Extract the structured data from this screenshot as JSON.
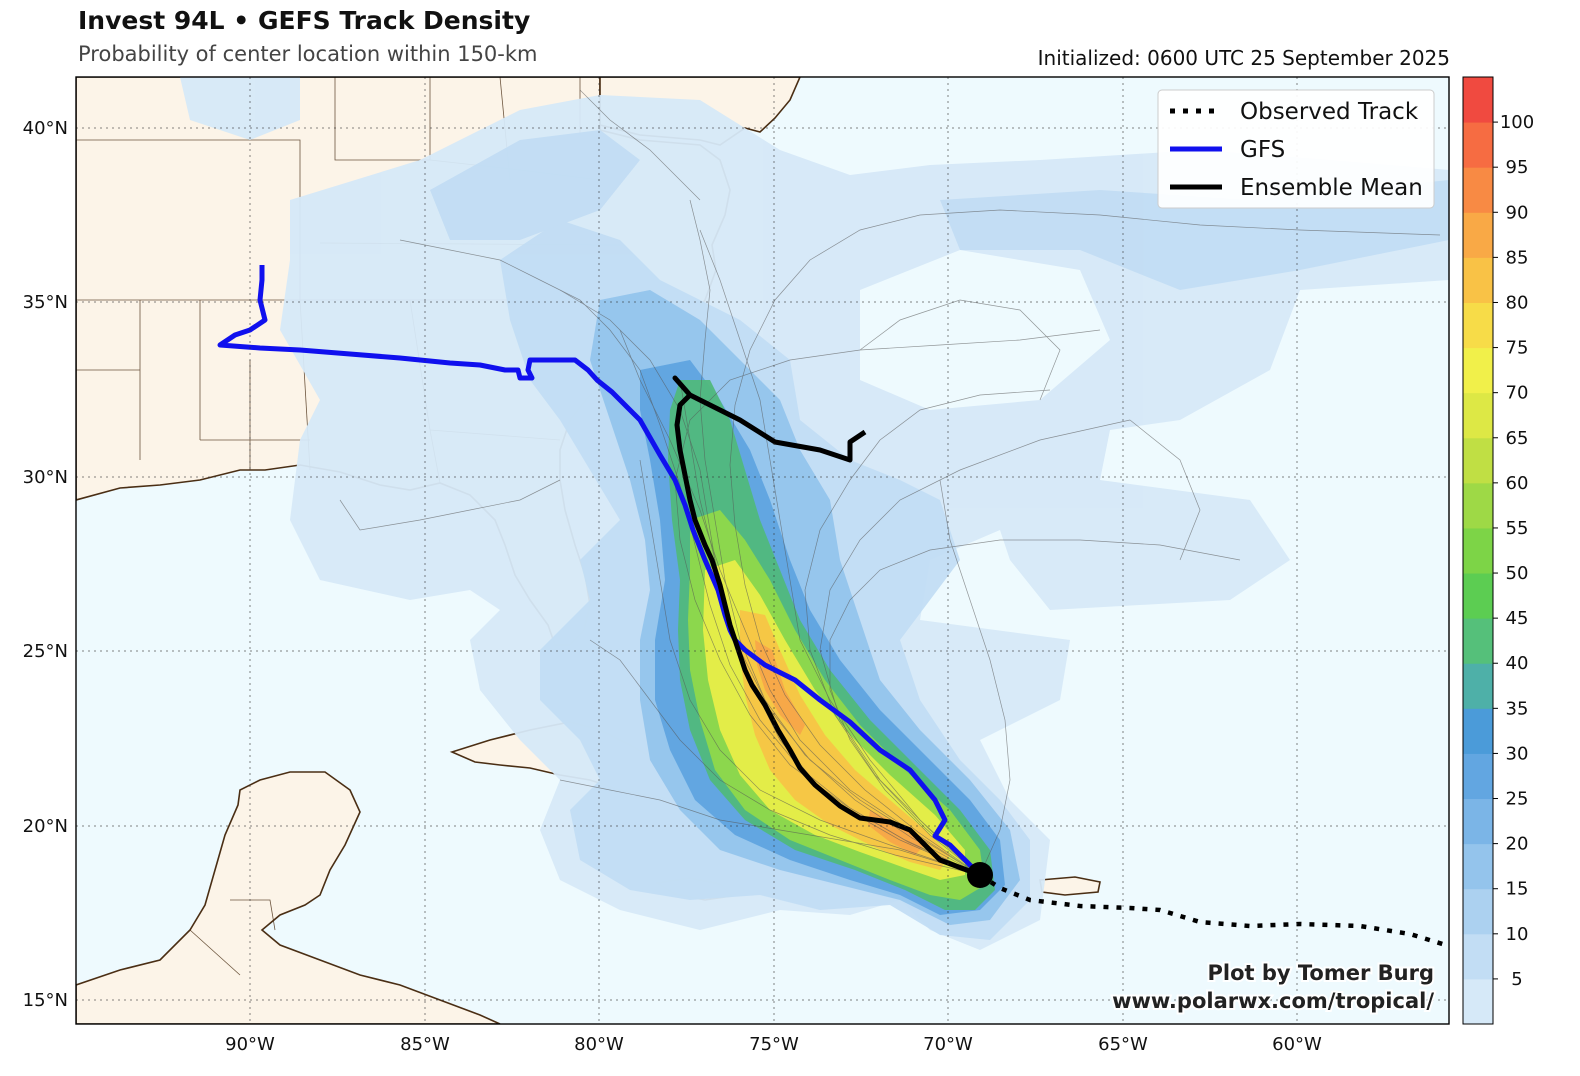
{
  "header": {
    "title": "Invest 94L • GEFS Track Density",
    "subtitle": "Probability of center location within 150-km",
    "initialized": "Initialized: 0600 UTC 25 September 2025"
  },
  "legend": {
    "observed": "Observed Track",
    "gfs": "GFS",
    "mean": "Ensemble Mean"
  },
  "credit": {
    "line1": "Plot by Tomer Burg",
    "line2": "www.polarwx.com/tropical/"
  },
  "axes": {
    "lat_labels": [
      "40°N",
      "35°N",
      "30°N",
      "25°N",
      "20°N",
      "15°N"
    ],
    "lon_labels": [
      "90°W",
      "85°W",
      "80°W",
      "75°W",
      "70°W",
      "65°W",
      "60°W"
    ]
  },
  "colorbar": {
    "labels": [
      "5",
      "10",
      "15",
      "20",
      "25",
      "30",
      "35",
      "40",
      "45",
      "50",
      "55",
      "60",
      "65",
      "70",
      "75",
      "80",
      "85",
      "90",
      "95",
      "100"
    ],
    "colors": [
      "#d6e9f8",
      "#c2ddf4",
      "#acd1f0",
      "#94c4ec",
      "#7bb5e7",
      "#62a6e1",
      "#4b9bd9",
      "#4eb0a8",
      "#55c07a",
      "#5ccd52",
      "#7dd447",
      "#9ed946",
      "#c0df44",
      "#dde845",
      "#f1f04a",
      "#f7dc48",
      "#f9c246",
      "#f9a946",
      "#f88a44",
      "#f66c42",
      "#f04a40"
    ]
  },
  "map": {
    "ocean_color": "#eefafe",
    "land_color": "#fcf4e8",
    "coast_color": "#4a2e14",
    "gfs_color": "#0f0fef",
    "mean_color": "#000000"
  }
}
